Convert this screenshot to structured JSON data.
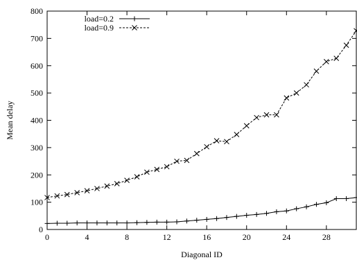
{
  "chart_data": {
    "type": "line",
    "xlabel": "Diagonal ID",
    "ylabel": "Mean delay",
    "xlim": [
      0,
      31
    ],
    "ylim": [
      0,
      800
    ],
    "xticks": [
      "0",
      "4",
      "8",
      "12",
      "16",
      "20",
      "24",
      "28"
    ],
    "yticks": [
      "0",
      "100",
      "200",
      "300",
      "400",
      "500",
      "600",
      "700",
      "800"
    ],
    "grid": false,
    "legend_position": "top-left",
    "x": [
      0,
      1,
      2,
      3,
      4,
      5,
      6,
      7,
      8,
      9,
      10,
      11,
      12,
      13,
      14,
      15,
      16,
      17,
      18,
      19,
      20,
      21,
      22,
      23,
      24,
      25,
      26,
      27,
      28,
      29,
      30,
      31
    ],
    "series": [
      {
        "name": "load=0.2",
        "marker": "plus",
        "dash": "solid",
        "values": [
          22,
          23,
          23,
          24,
          24,
          24,
          24,
          24,
          24,
          25,
          26,
          27,
          27,
          28,
          31,
          34,
          37,
          40,
          44,
          48,
          52,
          55,
          59,
          65,
          68,
          76,
          83,
          92,
          98,
          113,
          113,
          117
        ]
      },
      {
        "name": "load=0.9",
        "marker": "cross",
        "dash": "dashed",
        "values": [
          117,
          123,
          128,
          135,
          142,
          150,
          159,
          168,
          180,
          193,
          210,
          220,
          230,
          250,
          253,
          278,
          303,
          325,
          322,
          348,
          380,
          410,
          420,
          420,
          482,
          500,
          530,
          580,
          615,
          627,
          675,
          728
        ]
      }
    ]
  }
}
